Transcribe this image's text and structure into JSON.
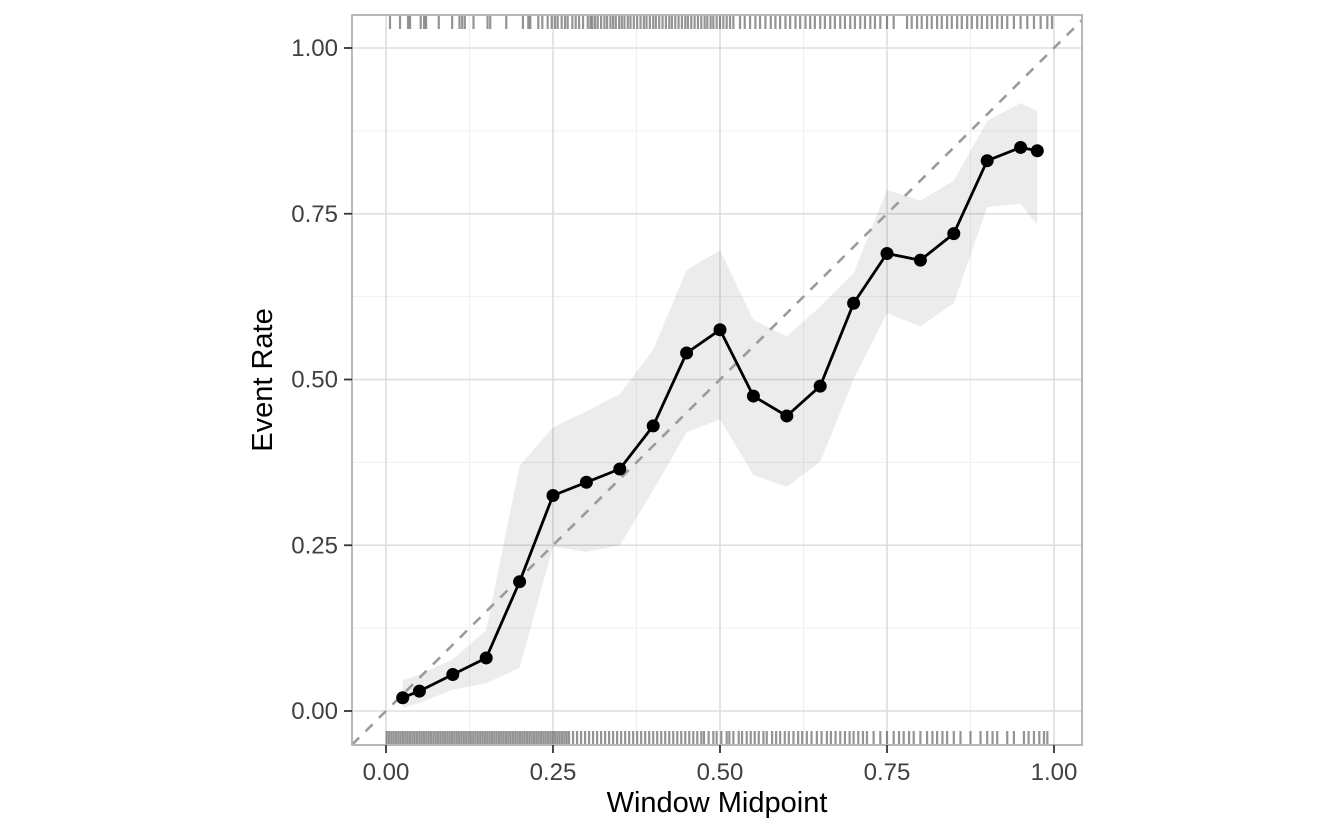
{
  "chart_data": {
    "type": "line",
    "title": "",
    "xlabel": "Window Midpoint",
    "ylabel": "Event Rate",
    "x_ticks": [
      "0.00",
      "0.25",
      "0.50",
      "0.75",
      "1.00"
    ],
    "x_tick_values": [
      0,
      0.25,
      0.5,
      0.75,
      1.0
    ],
    "y_ticks": [
      "0.00",
      "0.25",
      "0.50",
      "0.75",
      "1.00"
    ],
    "y_tick_values": [
      0,
      0.25,
      0.5,
      0.75,
      1.0
    ],
    "x_minor_gridlines": [
      0.125,
      0.375,
      0.625,
      0.875
    ],
    "y_minor_gridlines": [
      0.125,
      0.375,
      0.625,
      0.875
    ],
    "xlim": [
      -0.051,
      1.042
    ],
    "ylim": [
      -0.051,
      1.05
    ],
    "grid": "major and minor, light gray, on white panel with gray border",
    "legend_position": "none",
    "series": [
      {
        "name": "observed-event-rate",
        "type": "line-with-points",
        "x": [
          0.025,
          0.05,
          0.1,
          0.15,
          0.2,
          0.25,
          0.3,
          0.35,
          0.4,
          0.45,
          0.5,
          0.55,
          0.6,
          0.65,
          0.7,
          0.75,
          0.8,
          0.85,
          0.9,
          0.95,
          0.975
        ],
        "y": [
          0.02,
          0.03,
          0.055,
          0.08,
          0.195,
          0.325,
          0.345,
          0.365,
          0.43,
          0.54,
          0.575,
          0.475,
          0.445,
          0.49,
          0.615,
          0.69,
          0.68,
          0.72,
          0.83,
          0.85,
          0.845
        ]
      },
      {
        "name": "confidence-ribbon",
        "type": "ribbon",
        "x": [
          0.025,
          0.05,
          0.1,
          0.15,
          0.2,
          0.25,
          0.3,
          0.35,
          0.4,
          0.45,
          0.5,
          0.55,
          0.6,
          0.65,
          0.7,
          0.75,
          0.8,
          0.85,
          0.9,
          0.95,
          0.975
        ],
        "lower": [
          0.005,
          0.012,
          0.032,
          0.042,
          0.065,
          0.248,
          0.24,
          0.25,
          0.333,
          0.42,
          0.44,
          0.356,
          0.338,
          0.376,
          0.5,
          0.6,
          0.58,
          0.615,
          0.76,
          0.765,
          0.733
        ],
        "upper": [
          0.046,
          0.055,
          0.078,
          0.122,
          0.37,
          0.428,
          0.452,
          0.478,
          0.545,
          0.665,
          0.695,
          0.59,
          0.565,
          0.61,
          0.66,
          0.786,
          0.77,
          0.8,
          0.89,
          0.917,
          0.905
        ]
      },
      {
        "name": "perfect-calibration-reference",
        "type": "abline-dashed",
        "slope": 1,
        "intercept": 0
      }
    ],
    "rug_top_x": [
      0.006,
      0.021,
      0.033,
      0.036,
      0.052,
      0.057,
      0.06,
      0.079,
      0.099,
      0.11,
      0.114,
      0.118,
      0.131,
      0.152,
      0.156,
      0.18,
      0.205,
      0.213,
      0.216,
      0.228,
      0.234,
      0.242,
      0.248,
      0.253,
      0.257,
      0.263,
      0.268,
      0.272,
      0.279,
      0.284,
      0.289,
      0.295,
      0.302,
      0.306,
      0.309,
      0.313,
      0.317,
      0.322,
      0.327,
      0.331,
      0.336,
      0.34,
      0.344,
      0.349,
      0.353,
      0.357,
      0.362,
      0.366,
      0.371,
      0.376,
      0.381,
      0.386,
      0.39,
      0.395,
      0.4,
      0.404,
      0.409,
      0.414,
      0.419,
      0.424,
      0.428,
      0.433,
      0.438,
      0.443,
      0.448,
      0.452,
      0.457,
      0.462,
      0.467,
      0.472,
      0.477,
      0.481,
      0.486,
      0.49,
      0.495,
      0.5,
      0.505,
      0.51,
      0.515,
      0.52,
      0.53,
      0.537,
      0.545,
      0.553,
      0.56,
      0.568,
      0.576,
      0.583,
      0.59,
      0.598,
      0.605,
      0.613,
      0.62,
      0.628,
      0.635,
      0.642,
      0.65,
      0.657,
      0.665,
      0.672,
      0.68,
      0.687,
      0.695,
      0.702,
      0.71,
      0.717,
      0.725,
      0.732,
      0.74,
      0.75,
      0.76,
      0.78,
      0.787,
      0.795,
      0.802,
      0.81,
      0.817,
      0.825,
      0.832,
      0.84,
      0.847,
      0.855,
      0.862,
      0.87,
      0.877,
      0.885,
      0.892,
      0.9,
      0.907,
      0.915,
      0.922,
      0.93,
      0.94,
      0.95,
      0.96,
      0.97,
      0.98,
      0.99,
      0.997
    ],
    "rug_bottom_x": [
      0.001,
      0.0045,
      0.008,
      0.0115,
      0.015,
      0.0185,
      0.022,
      0.0255,
      0.029,
      0.0325,
      0.036,
      0.0395,
      0.043,
      0.0465,
      0.05,
      0.0535,
      0.057,
      0.0605,
      0.064,
      0.0675,
      0.071,
      0.0745,
      0.078,
      0.0815,
      0.085,
      0.0885,
      0.092,
      0.0955,
      0.099,
      0.1025,
      0.106,
      0.1095,
      0.113,
      0.1165,
      0.12,
      0.1235,
      0.127,
      0.1305,
      0.134,
      0.1375,
      0.141,
      0.1445,
      0.148,
      0.1515,
      0.155,
      0.1585,
      0.162,
      0.1655,
      0.169,
      0.1725,
      0.176,
      0.1795,
      0.183,
      0.1865,
      0.19,
      0.1935,
      0.197,
      0.2005,
      0.204,
      0.2075,
      0.211,
      0.2145,
      0.218,
      0.2215,
      0.225,
      0.2285,
      0.232,
      0.2355,
      0.239,
      0.2425,
      0.246,
      0.2495,
      0.253,
      0.2565,
      0.26,
      0.2635,
      0.267,
      0.2705,
      0.274,
      0.28,
      0.286,
      0.292,
      0.298,
      0.304,
      0.31,
      0.316,
      0.322,
      0.328,
      0.334,
      0.34,
      0.346,
      0.352,
      0.358,
      0.364,
      0.37,
      0.376,
      0.382,
      0.388,
      0.394,
      0.4,
      0.406,
      0.412,
      0.418,
      0.424,
      0.43,
      0.436,
      0.442,
      0.448,
      0.454,
      0.46,
      0.466,
      0.472,
      0.476,
      0.483,
      0.49,
      0.495,
      0.502,
      0.51,
      0.514,
      0.52,
      0.528,
      0.533,
      0.54,
      0.546,
      0.552,
      0.558,
      0.565,
      0.57,
      0.578,
      0.584,
      0.59,
      0.597,
      0.603,
      0.61,
      0.617,
      0.623,
      0.63,
      0.637,
      0.645,
      0.652,
      0.66,
      0.666,
      0.673,
      0.68,
      0.687,
      0.694,
      0.7,
      0.707,
      0.714,
      0.72,
      0.73,
      0.74,
      0.75,
      0.76,
      0.768,
      0.775,
      0.783,
      0.79,
      0.8,
      0.81,
      0.818,
      0.825,
      0.833,
      0.84,
      0.85,
      0.86,
      0.875,
      0.89,
      0.9,
      0.908,
      0.915,
      0.93,
      0.94,
      0.955,
      0.962,
      0.97,
      0.978,
      0.985,
      0.99
    ]
  },
  "colors": {
    "background": "#ffffff",
    "panel_background": "#ffffff",
    "panel_border": "#b0b0b0",
    "grid_major": "#dedede",
    "grid_minor": "#efefef",
    "line": "#000000",
    "point": "#000000",
    "ribbon_fill": "#000000",
    "ribbon_opacity": 0.075,
    "reference_line": "#9b9b9b",
    "rug": "#3c3c3c",
    "rug_opacity": 0.55,
    "tick_label": "#404040",
    "axis_title": "#000000",
    "tick_mark": "#333333"
  }
}
